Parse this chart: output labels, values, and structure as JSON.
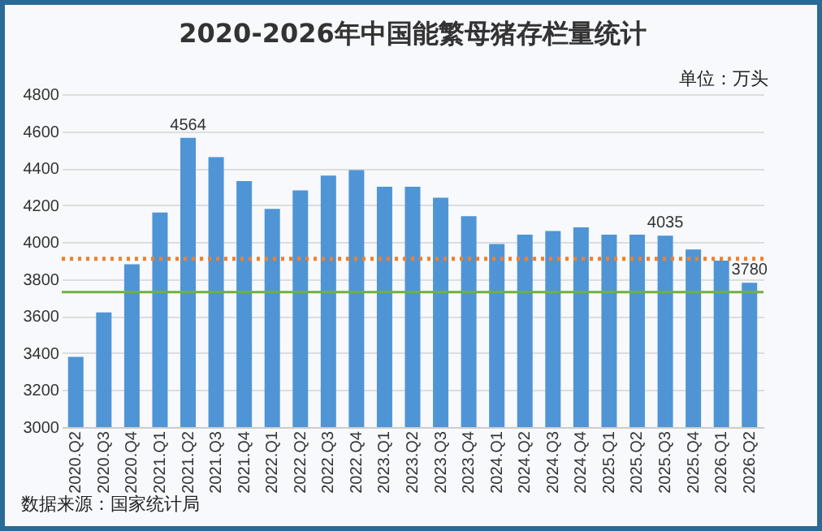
{
  "chart_data": {
    "type": "bar",
    "title": "2020-2026年中国能繁母猪存栏量统计",
    "categories": [
      "2020.Q2",
      "2020.Q3",
      "2020.Q4",
      "2021.Q1",
      "2021.Q2",
      "2021.Q3",
      "2021.Q4",
      "2022.Q1",
      "2022.Q2",
      "2022.Q3",
      "2022.Q4",
      "2023.Q1",
      "2023.Q2",
      "2023.Q3",
      "2023.Q4",
      "2024.Q1",
      "2024.Q2",
      "2024.Q3",
      "2024.Q4",
      "2025.Q1",
      "2025.Q2",
      "2025.Q3",
      "2025.Q4",
      "2026.Q1",
      "2026.Q2"
    ],
    "values": [
      3380,
      3620,
      3880,
      4160,
      4564,
      4460,
      4330,
      4180,
      4280,
      4360,
      4390,
      4300,
      4300,
      4240,
      4140,
      3990,
      4040,
      4060,
      4080,
      4040,
      4040,
      4035,
      3960,
      3900,
      3780
    ],
    "value_labels": [
      null,
      null,
      null,
      null,
      "4564",
      null,
      null,
      null,
      null,
      null,
      null,
      null,
      null,
      null,
      null,
      null,
      null,
      null,
      null,
      null,
      null,
      "4035",
      null,
      null,
      "3780"
    ],
    "color": "#4f95d6",
    "ylim": [
      3000,
      4800
    ],
    "yticks": [
      3000,
      3200,
      3400,
      3600,
      3800,
      4000,
      4200,
      4400,
      4600,
      4800
    ],
    "grid": "y",
    "ref_lines": [
      {
        "axis": "y",
        "value": 3910,
        "color": "#f0802a",
        "line_style": "dotted"
      },
      {
        "axis": "y",
        "value": 3730,
        "color": "#70b040",
        "line_style": "solid"
      }
    ],
    "annotations": [
      "单位：万头",
      "数据来源：国家统计局"
    ]
  }
}
